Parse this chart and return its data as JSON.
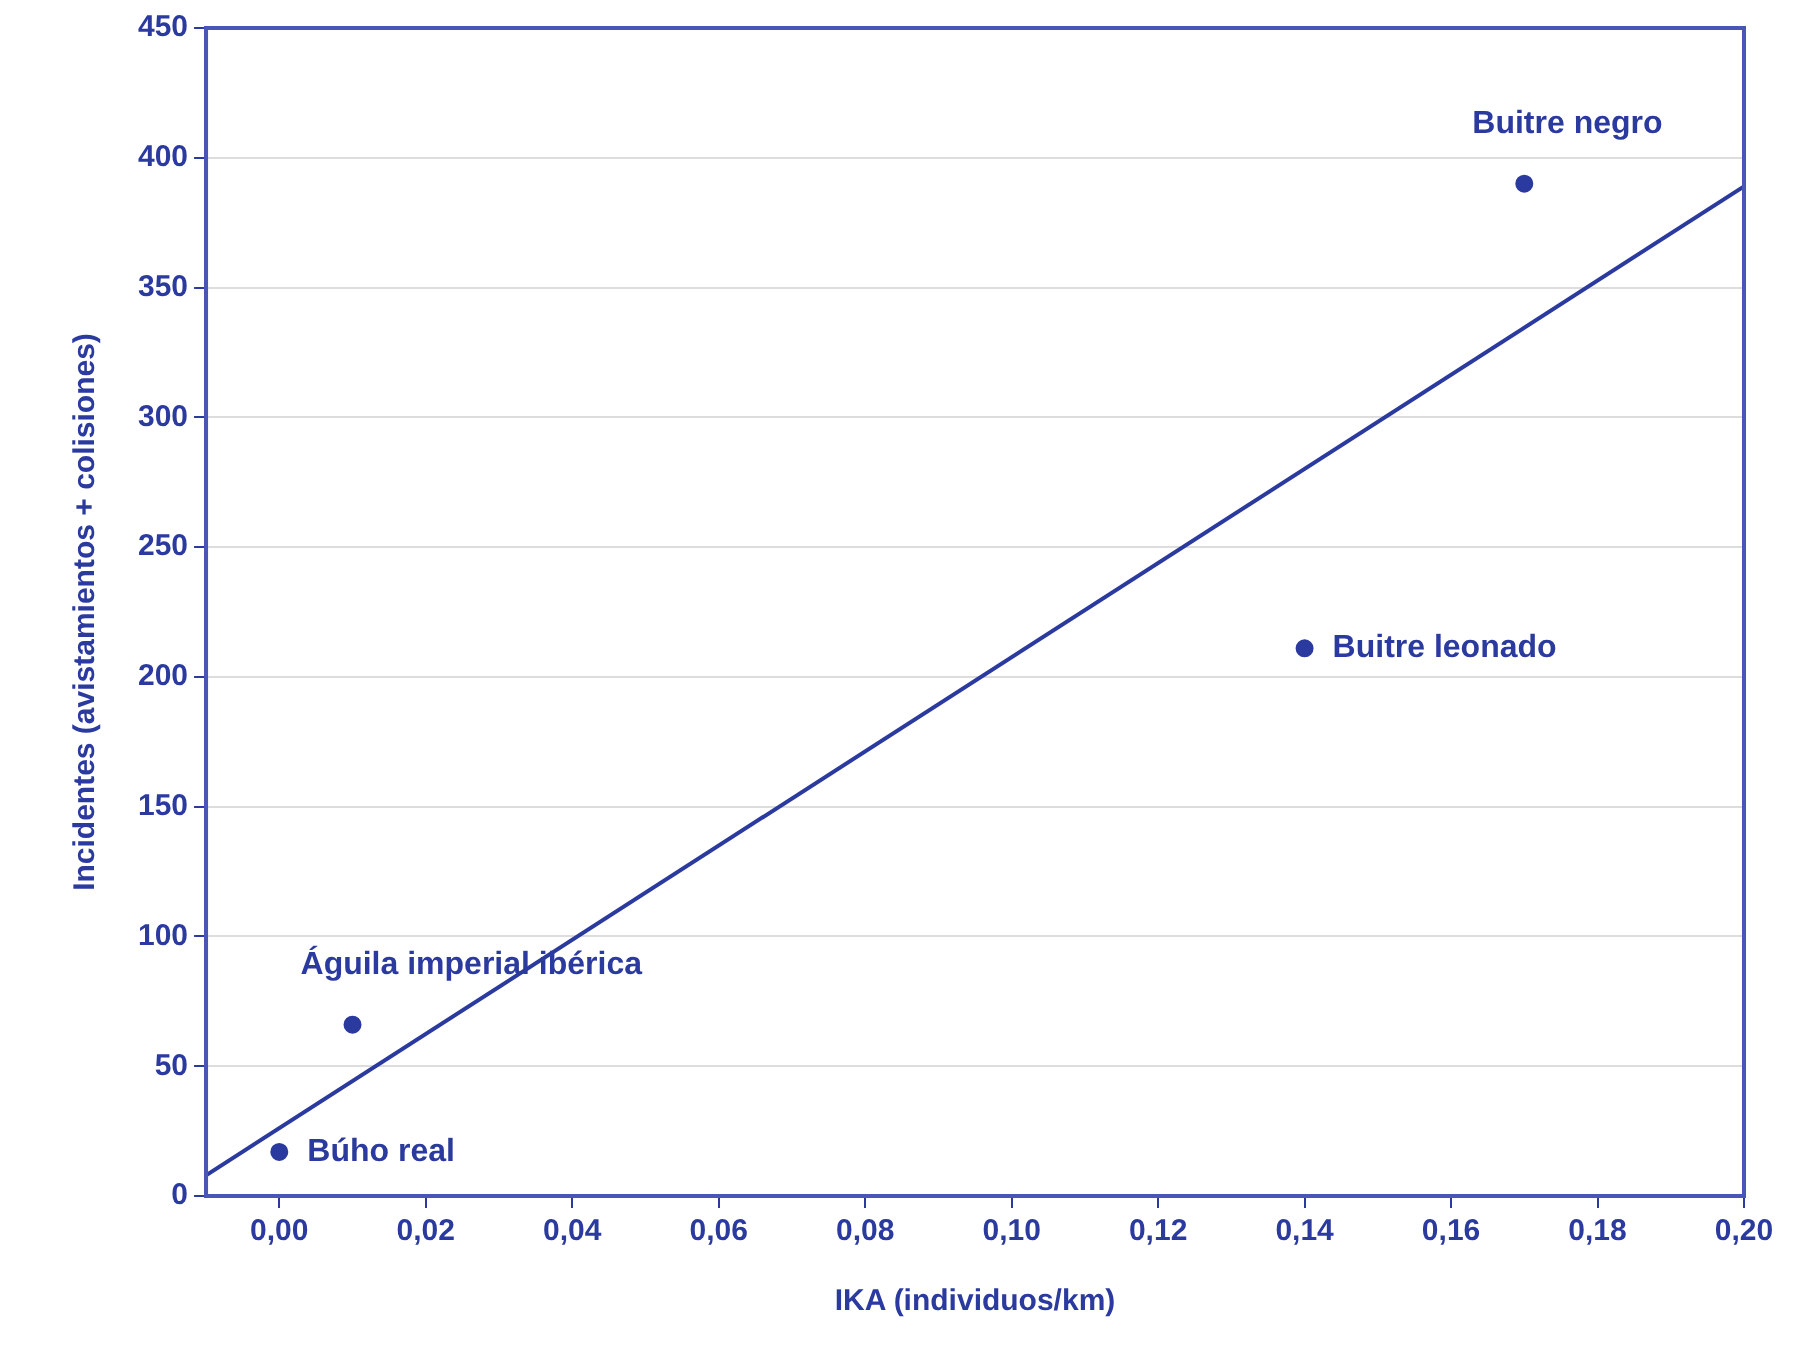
{
  "chart_data": {
    "type": "scatter",
    "xlabel": "IKA (individuos/km)",
    "ylabel": "Incidentes (avistamientos + colisiones)",
    "series": [
      {
        "type": "scatter",
        "color": "#2b3a9e",
        "marker": "circle",
        "x": [
          0.0,
          0.01,
          0.14,
          0.17
        ],
        "values": [
          17,
          66,
          211,
          390
        ]
      },
      {
        "type": "line",
        "color": "#2b3a9e",
        "marker": "none",
        "x": [
          -0.01,
          0.2
        ],
        "values": [
          8,
          389
        ]
      }
    ],
    "annotations": [
      {
        "text": "Búho real",
        "x": 0.0,
        "y": 17
      },
      {
        "text": "Águila imperial ibérica",
        "x": 0.01,
        "y": 66
      },
      {
        "text": "Buitre leonado",
        "x": 0.14,
        "y": 211
      },
      {
        "text": "Buitre negro",
        "x": 0.17,
        "y": 390
      }
    ],
    "xlim": [
      -0.01,
      0.2
    ],
    "xticks": [
      {
        "value": 0,
        "label": "0,00"
      },
      {
        "value": 0.02,
        "label": "0,02"
      },
      {
        "value": 0.04,
        "label": "0,04"
      },
      {
        "value": 0.06,
        "label": "0,06"
      },
      {
        "value": 0.08,
        "label": "0,08"
      },
      {
        "value": 0.1,
        "label": "0,10"
      },
      {
        "value": 0.12,
        "label": "0,12"
      },
      {
        "value": 0.14,
        "label": "0,14"
      },
      {
        "value": 0.16,
        "label": "0,16"
      },
      {
        "value": 0.18,
        "label": "0,18"
      },
      {
        "value": 0.2,
        "label": "0,20"
      }
    ],
    "ylim": [
      0,
      450
    ],
    "yticks": [
      0,
      50,
      100,
      150,
      200,
      250,
      300,
      350,
      400,
      450
    ],
    "grid": "y",
    "legend": false,
    "line_style": "solid"
  }
}
